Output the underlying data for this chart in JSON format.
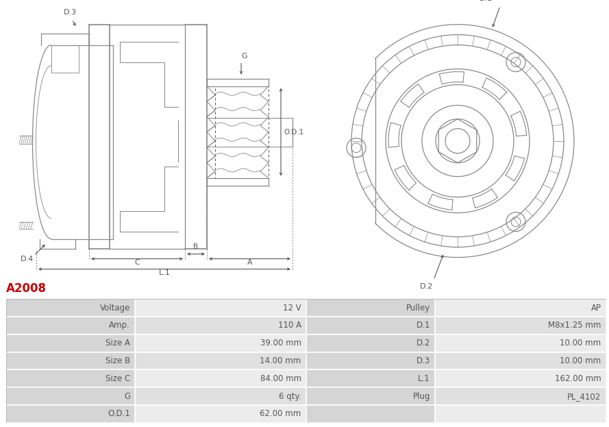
{
  "title": "A2008",
  "title_color": "#cc0000",
  "title_fontsize": 12,
  "table_data": [
    [
      "Voltage",
      "12 V",
      "Pulley",
      "AP"
    ],
    [
      "Amp.",
      "110 A",
      "D.1",
      "M8x1.25 mm"
    ],
    [
      "Size A",
      "39.00 mm",
      "D.2",
      "10.00 mm"
    ],
    [
      "Size B",
      "14.00 mm",
      "D.3",
      "10.00 mm"
    ],
    [
      "Size C",
      "84.00 mm",
      "L.1",
      "162.00 mm"
    ],
    [
      "G",
      "6 qty.",
      "Plug",
      "PL_4102"
    ],
    [
      "O.D.1",
      "62.00 mm",
      "",
      ""
    ]
  ],
  "col_splits": [
    0.0,
    0.215,
    0.5,
    0.715,
    1.0
  ],
  "label_col_bg": "#d5d5d5",
  "row_bg_odd": "#ececec",
  "row_bg_even": "#e0e0e0",
  "cell_text_color": "#555555",
  "table_fontsize": 8.5,
  "fig_width": 8.89,
  "fig_height": 6.23,
  "bg_color": "#ffffff",
  "line_color": "#888888",
  "dim_color": "#555555"
}
